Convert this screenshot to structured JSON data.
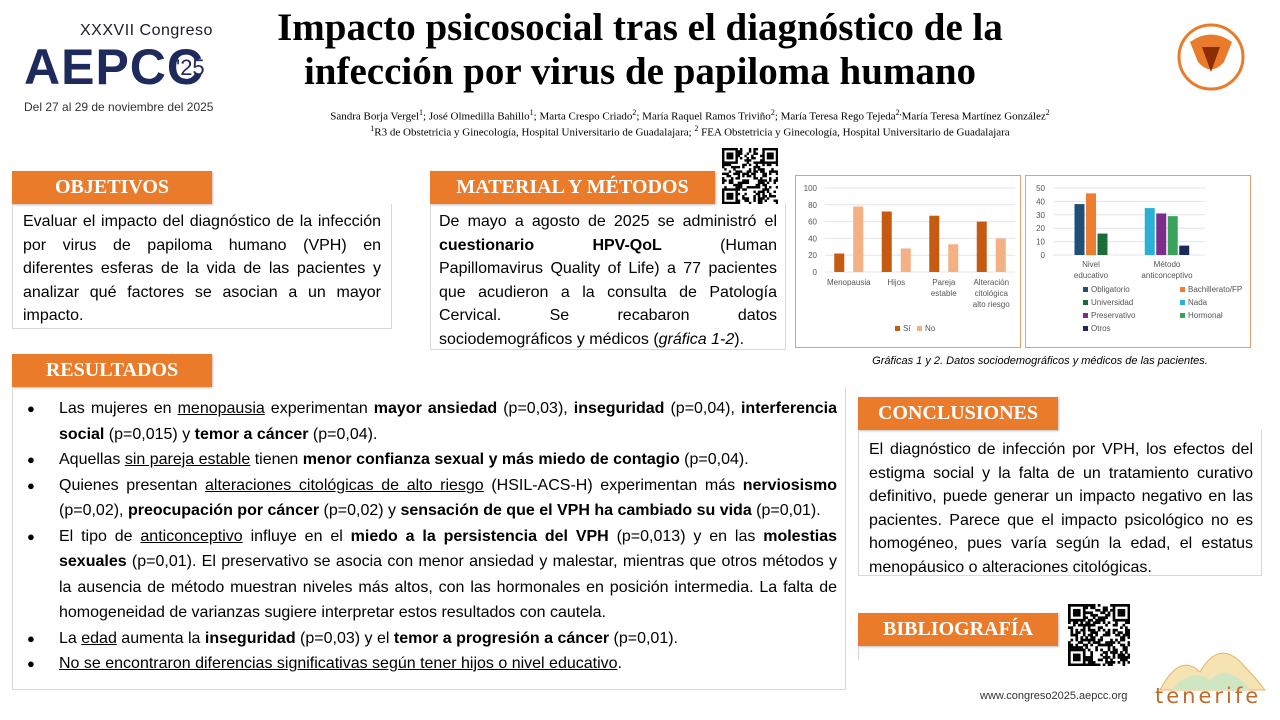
{
  "header": {
    "congress": "XXXVII Congreso",
    "brand": "AEPCC",
    "year": "'25",
    "dates": "Del 27 al 29 de noviembre del 2025",
    "title": [
      "Impacto psicosocial tras el diagnóstico de la",
      "infección por virus de papiloma humano"
    ],
    "authors": [
      "Sandra Borja Vergel",
      "1",
      "; José Olmedilla Bahillo",
      "1",
      "; Marta Crespo Criado",
      "2",
      "; María Raquel Ramos Triviño",
      "2",
      "; María Teresa Rego Tejeda",
      "2,",
      "María Teresa Martínez González",
      "2"
    ],
    "affiliations": [
      "1",
      "R3 de Obstetricia y Ginecología, Hospital Universitario de Guadalajara;  ",
      "2",
      " FEA Obstetricia y Ginecología, Hospital Universitario de Guadalajara"
    ]
  },
  "objetivos": {
    "heading": "OBJETIVOS",
    "text": [
      "Evaluar el impacto del diagnóstico de la infección por virus de papiloma humano (VPH) en diferentes esferas de la vida de las pacientes y analizar qué factores se asocian a un mayor impacto."
    ]
  },
  "metodos": {
    "heading": "MATERIAL Y MÉTODOS",
    "text": [
      "De mayo a agosto de 2025 se administró el ",
      "cuestionario HPV-QoL",
      " (Human Papillomavirus Quality of Life) a 77 pacientes que acudieron a la consulta de Patología Cervical. Se recabaron datos sociodemográficos y médicos (",
      "gráfica 1-2",
      ")."
    ]
  },
  "charts": [
    {
      "type": "bar",
      "categories": [
        "Menopausia",
        "Hijos",
        "Pareja estable",
        "Alteración citológica alto riesgo"
      ],
      "series": [
        {
          "name": "Sí",
          "color": "#c55a11",
          "values": [
            22,
            72,
            67,
            60
          ]
        },
        {
          "name": "No",
          "color": "#f4b183",
          "values": [
            78,
            28,
            33,
            40
          ]
        }
      ],
      "ylim": [
        0,
        100
      ],
      "yticks": [
        0,
        20,
        40,
        60,
        80,
        100
      ],
      "legend": "bottom"
    },
    {
      "type": "bar",
      "categories": [
        "Nivel educativo",
        "Método anticonceptivo"
      ],
      "series": [
        {
          "name": "Obligatorio",
          "color": "#1f4e79",
          "values": [
            38,
            null
          ]
        },
        {
          "name": "Bachillerato/FP",
          "color": "#ed7d31",
          "values": [
            46,
            null
          ]
        },
        {
          "name": "Universidad",
          "color": "#1e6b3a",
          "values": [
            16,
            null
          ]
        },
        {
          "name": "Nada",
          "color": "#2ab0d4",
          "values": [
            null,
            35
          ]
        },
        {
          "name": "Preservativo",
          "color": "#7b2c8e",
          "values": [
            null,
            31
          ]
        },
        {
          "name": "Hormonal",
          "color": "#3aa35b",
          "values": [
            null,
            29
          ]
        },
        {
          "name": "Otros",
          "color": "#1c2a59",
          "values": [
            null,
            7
          ]
        }
      ],
      "ylim": [
        0,
        50
      ],
      "yticks": [
        0,
        10,
        20,
        30,
        40,
        50
      ],
      "legend": "bottom"
    }
  ],
  "caption": "Gráficas 1 y 2. Datos sociodemográficos  y médicos de las pacientes.",
  "resultados": {
    "heading": "RESULTADOS",
    "items": [
      [
        "Las mujeres en ",
        "menopausia",
        " experimentan ",
        "mayor ansiedad",
        " (p=0,03), ",
        "inseguridad",
        " (p=0,04), ",
        "interferencia social",
        " (p=0,015) y ",
        "temor a cáncer",
        " (p=0,04)."
      ],
      [
        "Aquellas ",
        "sin pareja estable",
        " tienen ",
        "menor confianza sexual y más miedo de contagio",
        " (p=0,04)."
      ],
      [
        "Quienes presentan ",
        "alteraciones citológicas de alto riesgo",
        " (HSIL-ACS-H) experimentan más ",
        "nerviosismo",
        " (p=0,02), ",
        "preocupación por cáncer",
        " (p=0,02) y ",
        "sensación de que el VPH ha cambiado su vida",
        " (p=0,01)."
      ],
      [
        "El tipo de ",
        "anticonceptivo",
        " influye en el ",
        "miedo a la persistencia del VPH",
        " (p=0,013) y en las ",
        "molestias sexuales",
        " (p=0,01). El preservativo se asocia con menor ansiedad y malestar, mientras que otros métodos y la ausencia de método muestran niveles más altos, con las hormonales en posición intermedia. La falta de homogeneidad de varianzas sugiere interpretar estos resultados con cautela."
      ],
      [
        "La ",
        "edad",
        " aumenta la ",
        "inseguridad",
        " (p=0,03) y el ",
        "temor a progresión a cáncer",
        " (p=0,01)."
      ],
      [
        "No se encontraron diferencias significativas según tener hijos o nivel educativo",
        "."
      ]
    ]
  },
  "conclusiones": {
    "heading": "CONCLUSIONES",
    "text": [
      "El diagnóstico de infección por VPH, los efectos del estigma social y la falta de un tratamiento curativo definitivo, puede generar un impacto negativo en las pacientes.  Parece que el impacto psicológico no es homogéneo, pues varía según la edad, el estatus menopáusico o alteraciones citológicas."
    ]
  },
  "bibliografia": {
    "heading": "BIBLIOGRAFÍA"
  },
  "footer": {
    "url": "www.congreso2025.aepcc.org",
    "place": "tenerife"
  }
}
